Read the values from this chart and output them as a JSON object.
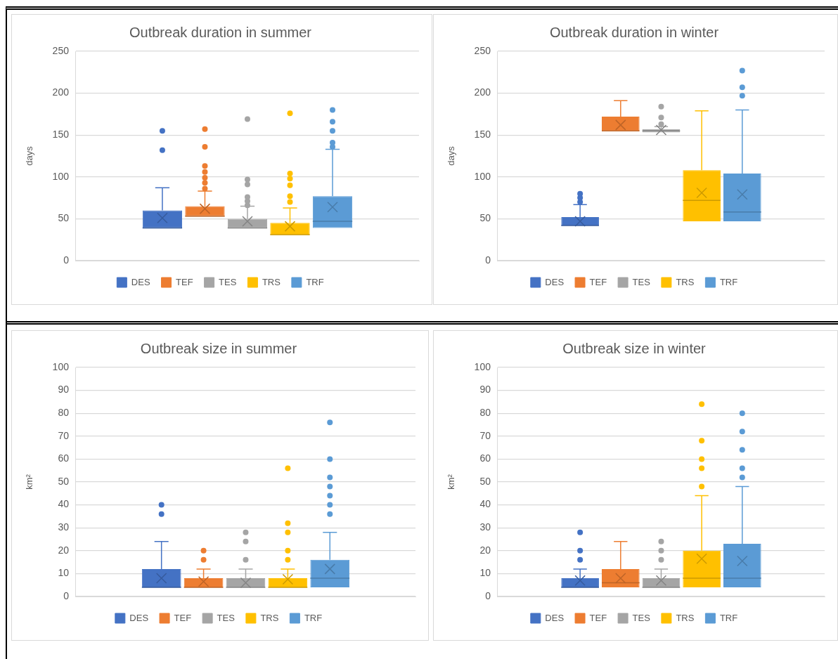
{
  "chart_data": [
    {
      "type": "box",
      "title": "Outbreak duration in summer",
      "ylabel": "days",
      "categories": [
        null
      ],
      "ylim": [
        0,
        250
      ],
      "yticks": [
        0,
        50,
        100,
        150,
        200,
        250
      ],
      "grid": "y",
      "legend": "bottom",
      "tick_labels": "y",
      "marker": "circle",
      "series": [
        {
          "name": "DES",
          "color": "#4472c4",
          "boxes": [
            {
              "low": 39,
              "q1": 39,
              "median": 39,
              "q3": 60,
              "high": 87,
              "mean": 51,
              "outliers": [
                132,
                155
              ]
            }
          ]
        },
        {
          "name": "TEF",
          "color": "#ed7d31",
          "boxes": [
            {
              "low": 53,
              "q1": 53,
              "median": 53,
              "q3": 65,
              "high": 83,
              "mean": 62,
              "outliers": [
                86,
                93,
                99,
                106,
                113,
                136,
                157
              ]
            }
          ]
        },
        {
          "name": "TES",
          "color": "#a5a5a5",
          "boxes": [
            {
              "low": 39,
              "q1": 39,
              "median": 39,
              "q3": 50,
              "high": 65,
              "mean": 47,
              "outliers": [
                66,
                71,
                76,
                91,
                97,
                169
              ]
            }
          ]
        },
        {
          "name": "TRS",
          "color": "#ffc000",
          "boxes": [
            {
              "low": 31,
              "q1": 31,
              "median": 31,
              "q3": 45,
              "high": 63,
              "mean": 41,
              "outliers": [
                70,
                77,
                90,
                98,
                104,
                176
              ]
            }
          ]
        },
        {
          "name": "TRF",
          "color": "#5b9bd5",
          "boxes": [
            {
              "low": 39,
              "q1": 39,
              "median": 47,
              "q3": 77,
              "high": 133,
              "mean": 64,
              "outliers": [
                136,
                141,
                155,
                166,
                180
              ]
            }
          ]
        }
      ]
    },
    {
      "type": "box",
      "title": "Outbreak duration in winter",
      "ylabel": "days",
      "categories": [
        null
      ],
      "ylim": [
        0,
        250
      ],
      "yticks": [
        0,
        50,
        100,
        150,
        200,
        250
      ],
      "grid": "y",
      "legend": "bottom",
      "tick_labels": "y",
      "marker": "circle",
      "series": [
        {
          "name": "DES",
          "color": "#4472c4",
          "boxes": [
            {
              "low": 42,
              "q1": 42,
              "median": 42,
              "q3": 52,
              "high": 67,
              "mean": 47,
              "outliers": [
                70,
                75,
                80
              ]
            }
          ]
        },
        {
          "name": "TEF",
          "color": "#ed7d31",
          "boxes": [
            {
              "low": 155,
              "q1": 155,
              "median": 155,
              "q3": 172,
              "high": 191,
              "mean": 162
            }
          ]
        },
        {
          "name": "TES",
          "color": "#a5a5a5",
          "boxes": [
            {
              "low": 153,
              "q1": 153,
              "median": 155,
              "q3": 157,
              "high": 160,
              "mean": 156,
              "outliers": [
                163,
                171,
                184
              ]
            }
          ]
        },
        {
          "name": "TRS",
          "color": "#ffc000",
          "boxes": [
            {
              "low": 47,
              "q1": 47,
              "median": 72,
              "q3": 108,
              "high": 179,
              "mean": 81
            }
          ]
        },
        {
          "name": "TRF",
          "color": "#5b9bd5",
          "boxes": [
            {
              "low": 47,
              "q1": 47,
              "median": 58,
              "q3": 104,
              "high": 180,
              "mean": 79,
              "outliers": [
                197,
                207,
                227
              ]
            }
          ]
        }
      ]
    },
    {
      "type": "box",
      "title": "Outbreak size in summer",
      "ylabel": "km²",
      "categories": [
        null
      ],
      "ylim": [
        0,
        100
      ],
      "yticks": [
        0,
        10,
        20,
        30,
        40,
        50,
        60,
        70,
        80,
        90,
        100
      ],
      "grid": "y",
      "legend": "bottom",
      "tick_labels": "y",
      "marker": "circle",
      "series": [
        {
          "name": "DES",
          "color": "#4472c4",
          "boxes": [
            {
              "low": 4,
              "q1": 4,
              "median": 4,
              "q3": 12,
              "high": 24,
              "mean": 8,
              "outliers": [
                36,
                40
              ]
            }
          ]
        },
        {
          "name": "TEF",
          "color": "#ed7d31",
          "boxes": [
            {
              "low": 4,
              "q1": 4,
              "median": 4,
              "q3": 8,
              "high": 12,
              "mean": 6.5,
              "outliers": [
                16,
                20
              ]
            }
          ]
        },
        {
          "name": "TES",
          "color": "#a5a5a5",
          "boxes": [
            {
              "low": 4,
              "q1": 4,
              "median": 4,
              "q3": 8,
              "high": 12,
              "mean": 6,
              "outliers": [
                16,
                24,
                28
              ]
            }
          ]
        },
        {
          "name": "TRS",
          "color": "#ffc000",
          "boxes": [
            {
              "low": 4,
              "q1": 4,
              "median": 4,
              "q3": 8,
              "high": 12,
              "mean": 7.5,
              "outliers": [
                16,
                20,
                28,
                32,
                56
              ]
            }
          ]
        },
        {
          "name": "TRF",
          "color": "#5b9bd5",
          "boxes": [
            {
              "low": 4,
              "q1": 4,
              "median": 8,
              "q3": 16,
              "high": 28,
              "mean": 12,
              "outliers": [
                36,
                40,
                44,
                48,
                52,
                60,
                76
              ]
            }
          ]
        }
      ]
    },
    {
      "type": "box",
      "title": "Outbreak size in winter",
      "ylabel": "km²",
      "categories": [
        null
      ],
      "ylim": [
        0,
        100
      ],
      "yticks": [
        0,
        10,
        20,
        30,
        40,
        50,
        60,
        70,
        80,
        90,
        100
      ],
      "grid": "y",
      "legend": "bottom",
      "tick_labels": "y",
      "marker": "circle",
      "series": [
        {
          "name": "DES",
          "color": "#4472c4",
          "boxes": [
            {
              "low": 4,
              "q1": 4,
              "median": 4,
              "q3": 8,
              "high": 12,
              "mean": 7,
              "outliers": [
                16,
                20,
                28
              ]
            }
          ]
        },
        {
          "name": "TEF",
          "color": "#ed7d31",
          "boxes": [
            {
              "low": 4,
              "q1": 4,
              "median": 6,
              "q3": 12,
              "high": 24,
              "mean": 8
            }
          ]
        },
        {
          "name": "TES",
          "color": "#a5a5a5",
          "boxes": [
            {
              "low": 4,
              "q1": 4,
              "median": 4,
              "q3": 8,
              "high": 12,
              "mean": 7,
              "outliers": [
                16,
                20,
                24
              ]
            }
          ]
        },
        {
          "name": "TRS",
          "color": "#ffc000",
          "boxes": [
            {
              "low": 4,
              "q1": 4,
              "median": 8,
              "q3": 20,
              "high": 44,
              "mean": 16.5,
              "outliers": [
                48,
                56,
                60,
                68,
                84
              ]
            }
          ]
        },
        {
          "name": "TRF",
          "color": "#5b9bd5",
          "boxes": [
            {
              "low": 4,
              "q1": 4,
              "median": 8,
              "q3": 23,
              "high": 48,
              "mean": 15.5,
              "outliers": [
                52,
                56,
                64,
                72,
                80
              ]
            }
          ]
        }
      ]
    }
  ]
}
